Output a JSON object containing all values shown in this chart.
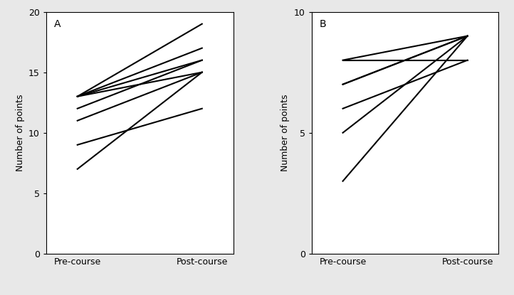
{
  "panel_A": {
    "label": "A",
    "pre": [
      13,
      13,
      13,
      13,
      12,
      11,
      9,
      7
    ],
    "post": [
      19,
      17,
      16,
      15,
      16,
      15,
      12,
      15
    ],
    "ylim": [
      0,
      20
    ],
    "yticks": [
      0,
      5,
      10,
      15,
      20
    ],
    "ylabel": "Number of points",
    "xlabel_pre": "Pre-course",
    "xlabel_post": "Post-course"
  },
  "panel_B": {
    "label": "B",
    "pre": [
      8,
      8,
      7,
      7,
      6,
      5,
      3
    ],
    "post": [
      9,
      8,
      9,
      9,
      8,
      9,
      9
    ],
    "ylim": [
      0,
      10
    ],
    "yticks": [
      0,
      5,
      10
    ],
    "ylabel": "Number of points",
    "xlabel_pre": "Pre-course",
    "xlabel_post": "Post-course"
  },
  "line_color": "#000000",
  "line_width": 1.5,
  "bg_color": "#e8e8e8",
  "plot_bg_color": "#ffffff",
  "label_fontsize": 9,
  "tick_fontsize": 9,
  "panel_label_fontsize": 10
}
